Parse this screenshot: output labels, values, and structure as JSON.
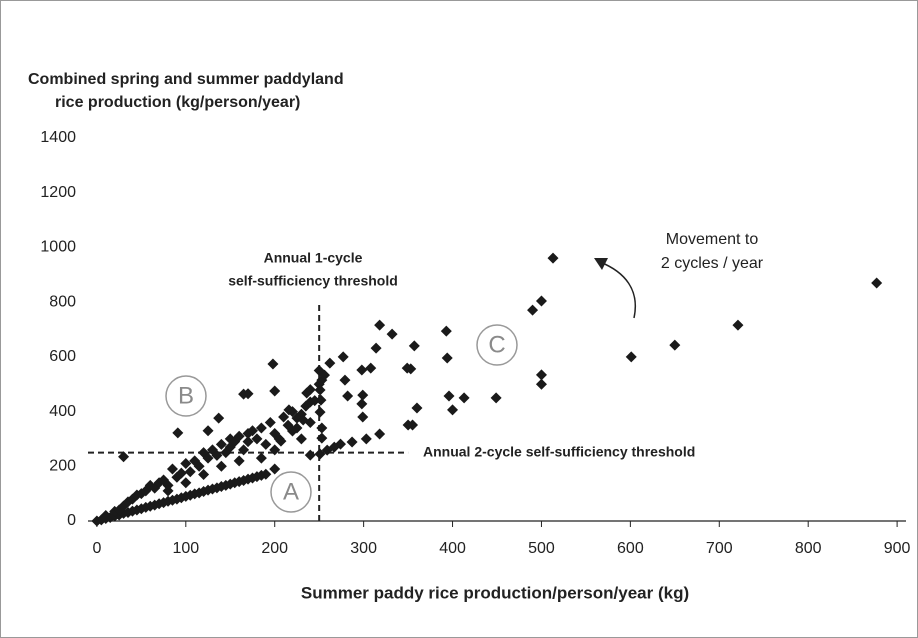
{
  "chart_data": {
    "type": "scatter",
    "title": [
      "Combined spring and summer paddyland",
      "rice production (kg/person/year)"
    ],
    "x_label": "Summer paddy rice production/person/year (kg)",
    "xlim": [
      -10,
      910
    ],
    "xticks": [
      0,
      100,
      200,
      300,
      400,
      500,
      600,
      700,
      800,
      900
    ],
    "ylim": [
      0,
      1400
    ],
    "yticks": [
      0,
      200,
      400,
      600,
      800,
      1000,
      1200,
      1400
    ],
    "color": "#1a1a1a",
    "x": [
      0,
      5,
      10,
      15,
      20,
      25,
      30,
      35,
      40,
      45,
      50,
      55,
      60,
      65,
      70,
      75,
      80,
      85,
      90,
      95,
      100,
      105,
      110,
      115,
      120,
      125,
      130,
      135,
      140,
      145,
      150,
      155,
      160,
      165,
      170,
      175,
      180,
      185,
      190,
      200,
      10,
      20,
      25,
      30,
      35,
      40,
      45,
      50,
      55,
      60,
      65,
      70,
      75,
      80,
      85,
      90,
      95,
      100,
      105,
      110,
      115,
      120,
      125,
      130,
      135,
      140,
      145,
      150,
      150,
      155,
      160,
      165,
      170,
      170,
      175,
      180,
      185,
      190,
      195,
      200,
      205,
      210,
      215,
      220,
      225,
      230,
      235,
      240,
      245,
      250,
      250,
      240,
      230,
      200,
      185,
      160,
      140,
      120,
      100,
      80,
      30,
      170,
      200,
      125,
      877,
      721,
      650,
      601,
      513,
      500,
      490,
      500,
      500,
      449,
      393,
      394,
      396,
      400,
      413,
      357,
      353,
      349,
      350,
      355,
      360,
      332,
      318,
      314,
      308,
      298,
      299,
      298,
      299,
      277,
      279,
      282,
      318,
      303,
      287,
      274,
      267,
      259,
      251,
      240,
      262,
      253,
      251,
      252,
      251,
      253,
      253,
      256,
      236,
      240,
      216,
      225,
      207,
      220,
      232,
      198,
      165,
      137,
      91
    ],
    "values": [
      0,
      4,
      9,
      13,
      18,
      22,
      28,
      31,
      36,
      40,
      45,
      50,
      54,
      58,
      63,
      67,
      72,
      76,
      80,
      85,
      90,
      94,
      99,
      103,
      108,
      113,
      117,
      121,
      126,
      130,
      135,
      140,
      144,
      148,
      153,
      157,
      162,
      167,
      171,
      190,
      20,
      35,
      40,
      55,
      70,
      80,
      95,
      100,
      110,
      130,
      120,
      140,
      150,
      130,
      190,
      160,
      175,
      210,
      180,
      220,
      200,
      250,
      230,
      260,
      240,
      280,
      250,
      300,
      270,
      290,
      310,
      260,
      320,
      290,
      330,
      300,
      340,
      280,
      360,
      320,
      300,
      380,
      350,
      400,
      340,
      390,
      420,
      480,
      440,
      500,
      550,
      360,
      300,
      260,
      230,
      220,
      200,
      170,
      140,
      110,
      235,
      465,
      475,
      330,
      870,
      716,
      643,
      600,
      961,
      804,
      771,
      534,
      500,
      450,
      694,
      596,
      457,
      406,
      450,
      640,
      556,
      559,
      351,
      351,
      413,
      683,
      716,
      632,
      559,
      552,
      460,
      428,
      380,
      600,
      515,
      457,
      318,
      300,
      289,
      281,
      270,
      259,
      245,
      241,
      577,
      515,
      479,
      442,
      398,
      340,
      303,
      533,
      468,
      435,
      406,
      376,
      292,
      329,
      369,
      574,
      464,
      376,
      322
    ],
    "thresholds": [
      {
        "x": 250,
        "y_range": [
          0,
          800
        ]
      },
      {
        "y": 250,
        "x_range": [
          -10,
          350
        ]
      }
    ],
    "annotations": {
      "one_cycle": [
        "Annual 1-cycle",
        "self-sufficiency threshold"
      ],
      "two_cycle": "Annual 2-cycle self-sufficiency threshold",
      "movement": [
        "Movement to",
        "2 cycles / year"
      ]
    },
    "regions": [
      "A",
      "B",
      "C"
    ]
  }
}
